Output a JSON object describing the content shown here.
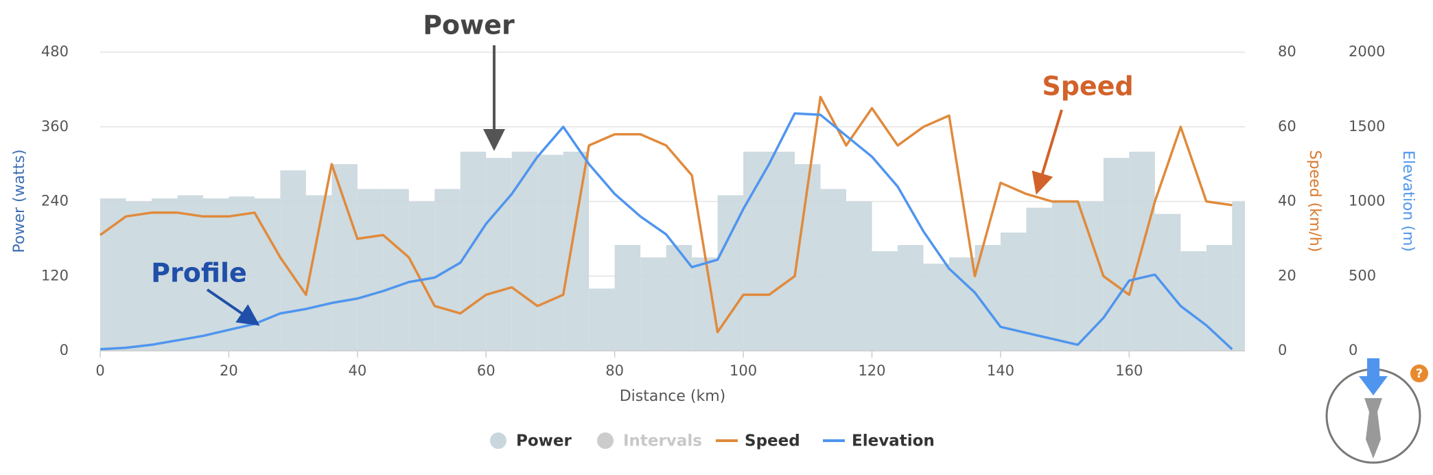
{
  "chart_data": {
    "type": "line",
    "x_label": "Distance (km)",
    "y_label": "Power (watts)",
    "y2_label": "Speed (km/h)",
    "y3_label": "Elevation (m)",
    "xlim": [
      0,
      178
    ],
    "xticks": [
      0,
      20,
      40,
      60,
      80,
      100,
      120,
      140,
      160
    ],
    "ylim": [
      0,
      480
    ],
    "yticks": [
      0,
      120,
      240,
      360,
      480
    ],
    "y2lim": [
      0,
      80
    ],
    "y2ticks": [
      0,
      20,
      40,
      60,
      80
    ],
    "y3lim": [
      0,
      2000
    ],
    "y3ticks": [
      0,
      500,
      1000,
      1500,
      2000
    ],
    "grid": true,
    "x": [
      0,
      4,
      8,
      12,
      16,
      20,
      24,
      28,
      32,
      36,
      40,
      44,
      48,
      52,
      56,
      60,
      64,
      68,
      72,
      76,
      80,
      84,
      88,
      92,
      96,
      100,
      104,
      108,
      112,
      116,
      120,
      124,
      128,
      132,
      136,
      140,
      144,
      148,
      152,
      156,
      160,
      164,
      168,
      172,
      176
    ],
    "series": [
      {
        "name": "Power",
        "type": "step",
        "axis": "y",
        "color": "#c9d7dd",
        "values": [
          245,
          240,
          245,
          250,
          245,
          248,
          245,
          290,
          250,
          300,
          260,
          260,
          240,
          260,
          320,
          310,
          320,
          315,
          320,
          100,
          170,
          150,
          170,
          150,
          250,
          320,
          320,
          300,
          260,
          240,
          160,
          170,
          140,
          150,
          170,
          190,
          230,
          240,
          240,
          310,
          320,
          220,
          160,
          170,
          240
        ]
      },
      {
        "name": "Intervals",
        "type": "none",
        "color": "#cccccc",
        "inactive": true
      },
      {
        "name": "Speed",
        "type": "line",
        "axis": "y2",
        "color": "#e08a3c",
        "values": [
          31,
          36,
          37,
          37,
          36,
          36,
          37,
          25,
          15,
          50,
          30,
          31,
          25,
          12,
          10,
          15,
          17,
          12,
          15,
          55,
          58,
          58,
          55,
          47,
          5,
          15,
          15,
          20,
          68,
          55,
          65,
          55,
          60,
          63,
          20,
          45,
          42,
          40,
          40,
          20,
          15,
          40,
          60,
          40,
          39
        ]
      },
      {
        "name": "Elevation",
        "type": "line",
        "axis": "y3",
        "color": "#4f95ee",
        "values": [
          10,
          20,
          40,
          70,
          100,
          140,
          180,
          250,
          280,
          320,
          350,
          400,
          460,
          490,
          590,
          850,
          1050,
          1300,
          1500,
          1250,
          1050,
          900,
          780,
          560,
          610,
          950,
          1250,
          1590,
          1580,
          1440,
          1300,
          1100,
          800,
          550,
          390,
          160,
          120,
          80,
          40,
          220,
          470,
          510,
          300,
          170,
          10
        ]
      }
    ],
    "annotations": [
      {
        "text": "Power",
        "color": "#444444"
      },
      {
        "text": "Speed",
        "color": "#d2622a"
      },
      {
        "text": "Profile",
        "color": "#1f4fa8"
      }
    ]
  }
}
